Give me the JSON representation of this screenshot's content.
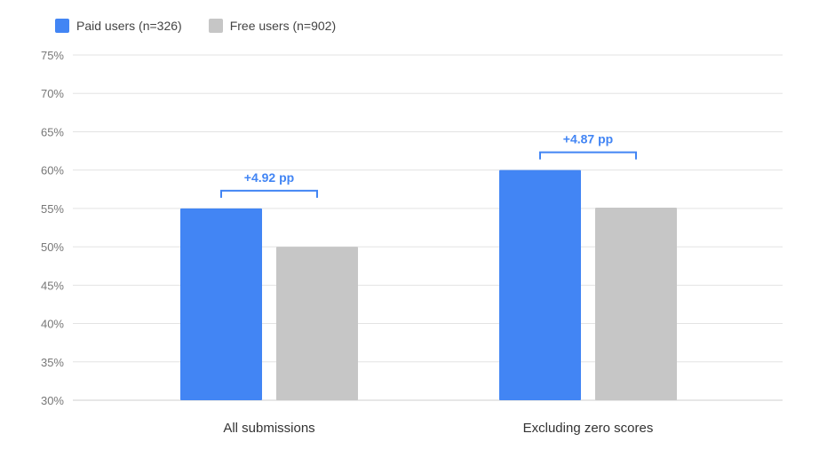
{
  "legend": {
    "items": [
      {
        "label": "Paid users (n=326)",
        "color": "#4285f4"
      },
      {
        "label": "Free users (n=902)",
        "color": "#c6c6c6"
      }
    ]
  },
  "chart_data": {
    "type": "bar",
    "categories": [
      "All submissions",
      "Excluding zero scores"
    ],
    "series": [
      {
        "name": "Paid users (n=326)",
        "color": "#4285f4",
        "values": [
          55,
          60
        ]
      },
      {
        "name": "Free users (n=902)",
        "color": "#c6c6c6",
        "values": [
          50,
          55.1
        ]
      }
    ],
    "ylim": [
      30,
      75
    ],
    "yticks": [
      30,
      35,
      40,
      45,
      50,
      55,
      60,
      65,
      70,
      75
    ],
    "ytick_suffix": "%",
    "grid": true,
    "legend_position": "top-left",
    "annotations": [
      {
        "category": "All submissions",
        "text": "+4.92 pp"
      },
      {
        "category": "Excluding zero scores",
        "text": "+4.87 pp"
      }
    ]
  }
}
